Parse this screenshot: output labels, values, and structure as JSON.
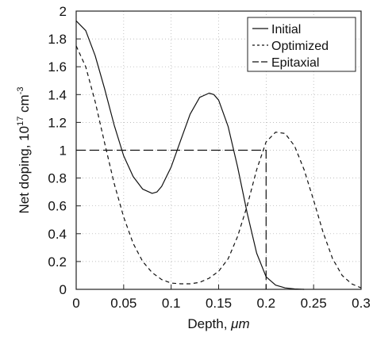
{
  "chart_data": {
    "type": "line",
    "title": "",
    "xlabel_text": "Depth, ",
    "xlabel_unit": "μm",
    "ylabel_pre": "Net doping, 10",
    "ylabel_exp": "17",
    "ylabel_unit": " cm",
    "ylabel_unit_exp": "-3",
    "xlim": [
      0,
      0.3
    ],
    "ylim": [
      0,
      2
    ],
    "xticks": [
      "0",
      "0.05",
      "0.1",
      "0.15",
      "0.2",
      "0.25",
      "0.3"
    ],
    "yticks": [
      "0",
      "0.2",
      "0.4",
      "0.6",
      "0.8",
      "1",
      "1.2",
      "1.4",
      "1.6",
      "1.8",
      "2"
    ],
    "grid": true,
    "legend_position": "top-right",
    "series": [
      {
        "name": "Initial",
        "style": "solid",
        "x": [
          0,
          0.01,
          0.02,
          0.03,
          0.04,
          0.05,
          0.06,
          0.07,
          0.08,
          0.085,
          0.09,
          0.1,
          0.11,
          0.12,
          0.13,
          0.14,
          0.145,
          0.15,
          0.16,
          0.17,
          0.18,
          0.19,
          0.2,
          0.21,
          0.22,
          0.23,
          0.24
        ],
        "y": [
          1.93,
          1.86,
          1.68,
          1.44,
          1.18,
          0.96,
          0.81,
          0.72,
          0.69,
          0.7,
          0.74,
          0.88,
          1.07,
          1.26,
          1.38,
          1.41,
          1.4,
          1.36,
          1.17,
          0.88,
          0.55,
          0.26,
          0.09,
          0.03,
          0.01,
          0.003,
          0.0
        ]
      },
      {
        "name": "Optimized",
        "style": "dashed",
        "x": [
          0,
          0.01,
          0.02,
          0.03,
          0.04,
          0.05,
          0.06,
          0.07,
          0.08,
          0.09,
          0.1,
          0.11,
          0.12,
          0.13,
          0.14,
          0.15,
          0.16,
          0.17,
          0.18,
          0.19,
          0.2,
          0.21,
          0.22,
          0.23,
          0.24,
          0.25,
          0.26,
          0.27,
          0.28,
          0.29,
          0.3
        ],
        "y": [
          1.75,
          1.6,
          1.35,
          1.05,
          0.76,
          0.52,
          0.33,
          0.2,
          0.12,
          0.07,
          0.045,
          0.04,
          0.04,
          0.05,
          0.08,
          0.13,
          0.22,
          0.38,
          0.6,
          0.86,
          1.06,
          1.13,
          1.12,
          1.03,
          0.86,
          0.64,
          0.41,
          0.22,
          0.1,
          0.04,
          0.01
        ]
      },
      {
        "name": "Epitaxial",
        "style": "long-dashed",
        "x": [
          0,
          0.2,
          0.2
        ],
        "y": [
          1.0,
          1.0,
          0.0
        ]
      }
    ]
  }
}
